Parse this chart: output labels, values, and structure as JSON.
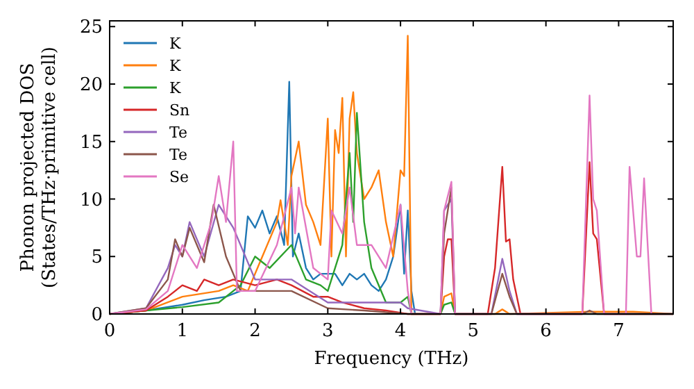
{
  "chart_data": {
    "type": "line",
    "xlabel": "Frequency (THz)",
    "ylabel": "Phonon projected DOS\n(States/THz·primitive cell)",
    "xlim": [
      0,
      7.75
    ],
    "ylim": [
      0,
      25.5
    ],
    "xticks": [
      0,
      1,
      2,
      3,
      4,
      5,
      6,
      7
    ],
    "yticks": [
      0,
      5,
      10,
      15,
      20,
      25
    ],
    "legend": "top left",
    "grid": false,
    "line_style": "solid",
    "marker": "none",
    "series": [
      {
        "name": "K",
        "color": "#1f77b4",
        "x": [
          0,
          0.5,
          1,
          1.3,
          1.6,
          1.8,
          1.9,
          2,
          2.1,
          2.2,
          2.3,
          2.4,
          2.47,
          2.52,
          2.6,
          2.7,
          2.8,
          2.9,
          3,
          3.1,
          3.2,
          3.3,
          3.4,
          3.5,
          3.6,
          3.7,
          3.8,
          3.9,
          4,
          4.05,
          4.1,
          4.15,
          4.2
        ],
        "values": [
          0,
          0.3,
          0.8,
          1.2,
          1.5,
          2,
          8.5,
          7.5,
          9,
          7,
          8.5,
          6,
          20.2,
          5,
          7,
          4,
          3,
          3.5,
          3.5,
          3.5,
          2.5,
          3.5,
          3,
          3.5,
          2.5,
          2,
          3,
          5,
          9.5,
          3.5,
          9,
          2,
          0
        ]
      },
      {
        "name": "K",
        "color": "#ff7f0e",
        "x": [
          0,
          0.5,
          1,
          1.5,
          1.7,
          1.9,
          2.1,
          2.3,
          2.35,
          2.45,
          2.5,
          2.6,
          2.7,
          2.8,
          2.9,
          3,
          3.05,
          3.1,
          3.15,
          3.2,
          3.25,
          3.3,
          3.35,
          3.4,
          3.5,
          3.6,
          3.7,
          3.8,
          3.9,
          4,
          4.05,
          4.1,
          4.15,
          4.55,
          4.6,
          4.7,
          4.75,
          5.3,
          5.4,
          5.5,
          6.6,
          7.2,
          7.75
        ],
        "values": [
          0,
          0.3,
          1.5,
          2,
          2.5,
          2,
          5,
          8,
          9.9,
          6,
          12,
          15,
          9.5,
          8,
          6,
          17,
          5,
          16,
          14,
          18.8,
          5,
          17,
          19.3,
          14,
          10,
          11,
          12.5,
          8,
          5,
          12.5,
          12,
          24.2,
          0,
          0,
          1.5,
          1.8,
          0,
          0,
          0.4,
          0,
          0.2,
          0.2,
          0
        ]
      },
      {
        "name": "K",
        "color": "#2ca02c",
        "x": [
          0,
          0.5,
          1,
          1.5,
          1.8,
          2,
          2.2,
          2.5,
          2.7,
          2.9,
          3,
          3.1,
          3.2,
          3.3,
          3.35,
          3.4,
          3.5,
          3.6,
          3.8,
          4,
          4.1,
          4.15,
          4.55,
          4.6,
          4.7,
          4.75,
          7.75
        ],
        "values": [
          0,
          0.3,
          0.6,
          1,
          2.5,
          5,
          4,
          6,
          3,
          2.5,
          2,
          4,
          6,
          14,
          8,
          17.5,
          8,
          4,
          1,
          1,
          1.5,
          0,
          0,
          0.8,
          1,
          0,
          0
        ]
      },
      {
        "name": "Sn",
        "color": "#d62728",
        "x": [
          0,
          0.5,
          0.8,
          1,
          1.2,
          1.3,
          1.5,
          1.7,
          2,
          2.3,
          2.5,
          2.8,
          3,
          3.2,
          3.5,
          3.8,
          4.1,
          4.55,
          4.6,
          4.65,
          4.7,
          4.75,
          5.2,
          5.3,
          5.4,
          5.45,
          5.5,
          5.55,
          5.65,
          6.5,
          6.6,
          6.65,
          6.7,
          6.8,
          7.75
        ],
        "values": [
          0,
          0.3,
          1.5,
          2.5,
          2,
          3,
          2.5,
          3,
          2.5,
          3,
          2.5,
          1.5,
          1.5,
          1,
          0.5,
          0.3,
          0,
          0,
          5,
          6.5,
          6.5,
          0,
          0,
          4,
          12.8,
          6.3,
          6.5,
          3,
          0,
          0,
          13.2,
          7,
          6.5,
          0,
          0
        ]
      },
      {
        "name": "Te",
        "color": "#9467bd",
        "x": [
          0,
          0.5,
          0.8,
          0.9,
          1,
          1.1,
          1.3,
          1.5,
          1.7,
          2,
          2.5,
          3,
          3.5,
          4,
          4.1,
          4.55,
          4.6,
          4.7,
          4.75,
          5.25,
          5.4,
          5.5,
          5.6,
          7.75
        ],
        "values": [
          0,
          0.5,
          4,
          6,
          5,
          8,
          5,
          9.5,
          7.5,
          3,
          3,
          1,
          1,
          1,
          0.5,
          0,
          9,
          10,
          0,
          0,
          4.8,
          2,
          0,
          0
        ]
      },
      {
        "name": "Te",
        "color": "#8c564b",
        "x": [
          0,
          0.5,
          0.8,
          0.9,
          1,
          1.1,
          1.3,
          1.43,
          1.6,
          1.8,
          2,
          2.5,
          3,
          3.5,
          4.1,
          4.55,
          4.6,
          4.7,
          4.75,
          5.25,
          5.4,
          5.5,
          5.6,
          6.5,
          6.6,
          6.7,
          7.75
        ],
        "values": [
          0,
          0.5,
          3,
          6.5,
          5,
          7.5,
          4.5,
          9.5,
          5,
          2,
          2,
          2,
          0.5,
          0.3,
          0,
          0,
          7,
          11,
          0,
          0,
          3.5,
          1.5,
          0,
          0,
          0.3,
          0,
          0
        ]
      },
      {
        "name": "Se",
        "color": "#e377c2",
        "x": [
          0,
          0.5,
          0.8,
          1,
          1.2,
          1.4,
          1.5,
          1.6,
          1.7,
          1.75,
          2,
          2.3,
          2.5,
          2.55,
          2.6,
          2.8,
          3,
          3.05,
          3.2,
          3.3,
          3.4,
          3.6,
          3.8,
          4,
          4.1,
          4.15,
          4.55,
          4.6,
          4.7,
          4.75,
          6.5,
          6.6,
          6.65,
          6.7,
          6.8,
          7.1,
          7.15,
          7.25,
          7.3,
          7.35,
          7.45
        ],
        "values": [
          0,
          0.4,
          2,
          6,
          4,
          8,
          12,
          8,
          15,
          2,
          2,
          6,
          11,
          7,
          11,
          4,
          3,
          9,
          7,
          11,
          6,
          6,
          4,
          9.5,
          2,
          0,
          0,
          9,
          11.5,
          0,
          0,
          19,
          10,
          9,
          0,
          0,
          12.8,
          5,
          5,
          11.8,
          0
        ]
      }
    ]
  }
}
